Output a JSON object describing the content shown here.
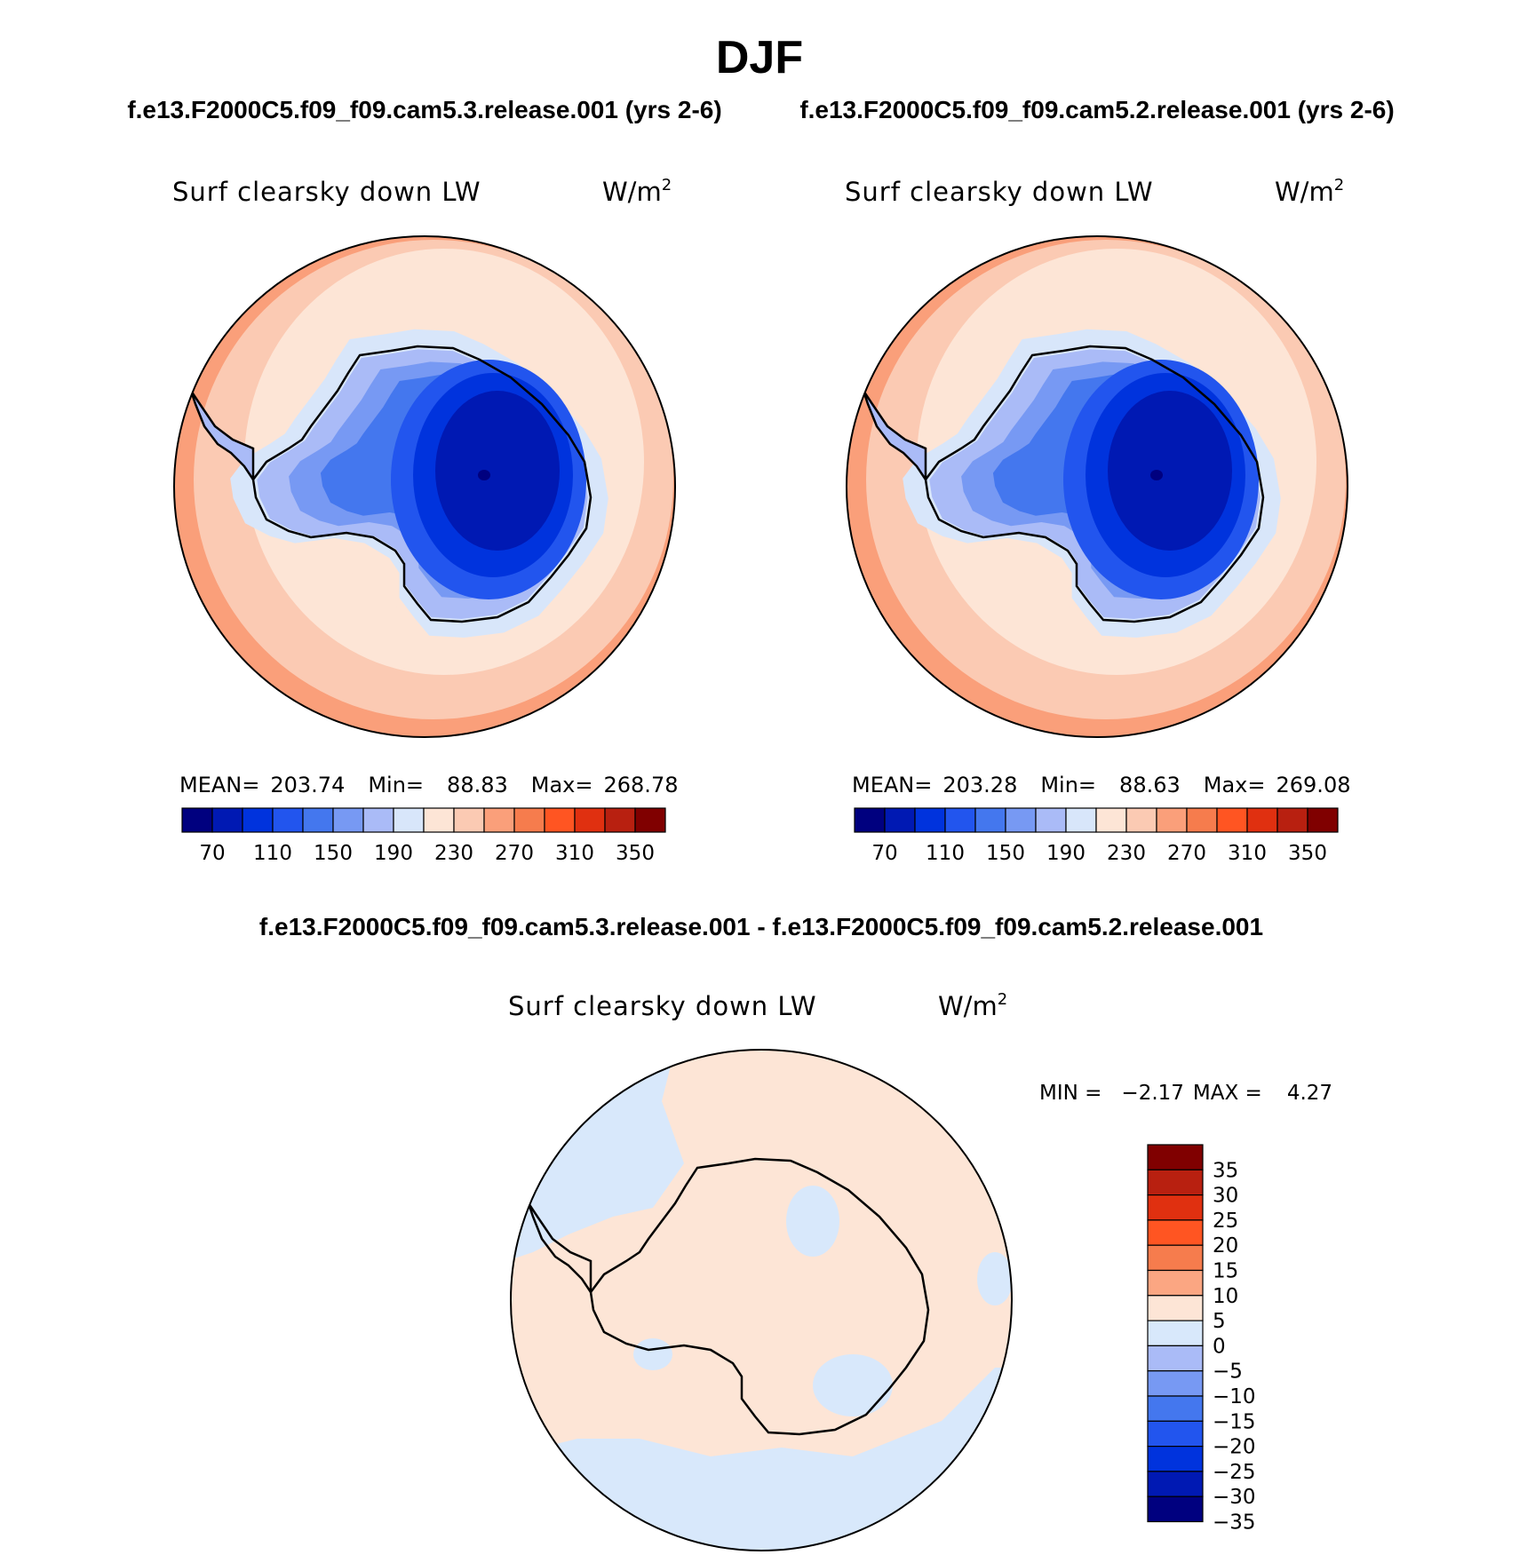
{
  "season": "DJF",
  "case_names": {
    "test": "f.e13.F2000C5.f09_f09.cam5.3.release.001 (yrs 2-6)",
    "control": "f.e13.F2000C5.f09_f09.cam5.2.release.001 (yrs 2-6)"
  },
  "diff_title": "f.e13.F2000C5.f09_f09.cam5.3.release.001 - f.e13.F2000C5.f09_f09.cam5.2.release.001",
  "variable": "Surf clearsky down LW",
  "units": "W/m",
  "units_sup": "2",
  "panels": [
    {
      "mean_label": "MEAN=",
      "mean": "203.74",
      "min_label": "Min=",
      "min": "88.83",
      "max_label": "Max=",
      "max": "268.78"
    },
    {
      "mean_label": "MEAN=",
      "mean": "203.28",
      "min_label": "Min=",
      "min": "88.63",
      "max_label": "Max=",
      "max": "269.08"
    }
  ],
  "diff_stats": {
    "min_label": "MIN =",
    "min": "−2.17",
    "max_label": "MAX =",
    "max": "4.27"
  },
  "abs_colorbar": {
    "colors": [
      "#00007f",
      "#0019b3",
      "#0033dd",
      "#2255ee",
      "#4477ee",
      "#7799f3",
      "#aabbf7",
      "#d8e6fa",
      "#fde5d6",
      "#fbcab3",
      "#fa9f7a",
      "#f67c4d",
      "#ff5522",
      "#e03010",
      "#b82010",
      "#800000"
    ],
    "labels": [
      "70",
      "110",
      "150",
      "190",
      "230",
      "270",
      "310",
      "350"
    ]
  },
  "diff_colorbar": {
    "colors": [
      "#800000",
      "#b82010",
      "#e03010",
      "#ff5522",
      "#f67c4d",
      "#fba682",
      "#fde5d6",
      "#d8e8fb",
      "#aabbf7",
      "#7799f3",
      "#4477ee",
      "#2255ee",
      "#0033dd",
      "#0019b3",
      "#00007f"
    ],
    "labels": [
      "35",
      "30",
      "25",
      "20",
      "15",
      "10",
      "5",
      "0",
      "−5",
      "−10",
      "−15",
      "−20",
      "−25",
      "−30",
      "−35"
    ]
  }
}
